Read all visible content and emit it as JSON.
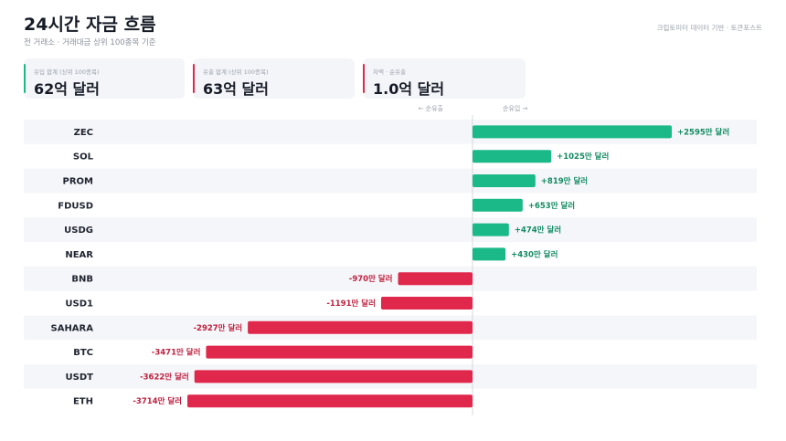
{
  "header": {
    "title": "24시간 자금 흐름",
    "subtitle": "전 거래소 · 거래대금 상위 100종목 기준",
    "source": "크립토미터 데이터 기반 · 토큰포스트"
  },
  "stats": [
    {
      "label": "유입 합계 (상위 100종목)",
      "value": "62억 달러",
      "color": "#1ab987"
    },
    {
      "label": "유출 합계 (상위 100종목)",
      "value": "63억 달러",
      "color": "#e0284c"
    },
    {
      "label": "차액 · 순유출",
      "value": "1.0억 달러",
      "color": "#e0284c"
    }
  ],
  "axis_hints": {
    "left": "← 순유출",
    "right": "순유입 →"
  },
  "colors": {
    "inflow": "#1ab987",
    "outflow": "#e0284c",
    "inflow_text": "#138a63",
    "outflow_text": "#c0203f"
  },
  "chart_data": {
    "type": "bar",
    "orientation": "horizontal",
    "unit": "만 달러",
    "categories": [
      "ZEC",
      "SOL",
      "PROM",
      "FDUSD",
      "USDG",
      "NEAR",
      "BNB",
      "USD1",
      "SAHARA",
      "BTC",
      "USDT",
      "ETH"
    ],
    "values": [
      2595,
      1025,
      819,
      653,
      474,
      430,
      -970,
      -1191,
      -2927,
      -3471,
      -3622,
      -3714
    ],
    "labels": [
      "+2595만 달러",
      "+1025만 달러",
      "+819만 달러",
      "+653만 달러",
      "+474만 달러",
      "+430만 달러",
      "-970만 달러",
      "-1191만 달러",
      "-2927만 달러",
      "-3471만 달러",
      "-3622만 달러",
      "-3714만 달러"
    ],
    "xlim": [
      -3714,
      2595
    ]
  }
}
